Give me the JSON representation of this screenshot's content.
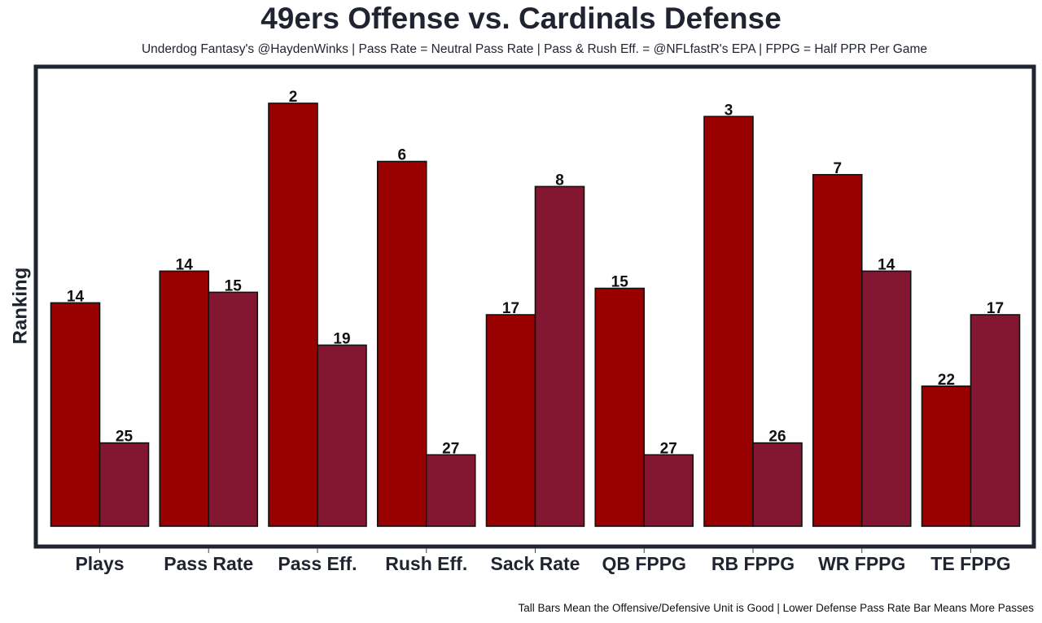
{
  "chart_data": {
    "type": "bar",
    "title": "49ers Offense vs. Cardinals Defense",
    "subtitle": "Underdog Fantasy's @HaydenWinks | Pass Rate = Neutral Pass Rate | Pass & Rush Eff. = @NFLfastR's EPA | FPPG = Half PPR Per Game",
    "caption": "Tall Bars Mean the Offensive/Defensive Unit is Good | Lower Defense Pass Rate Bar Means More Passes",
    "xlabel": "",
    "ylabel": "Ranking",
    "ylim": [
      0,
      32
    ],
    "grid": false,
    "legend": "none",
    "categories": [
      "Plays",
      "Pass Rate",
      "Pass Eff.",
      "Rush Eff.",
      "Sack Rate",
      "QB FPPG",
      "RB FPPG",
      "WR FPPG",
      "TE FPPG"
    ],
    "series": [
      {
        "name": "49ers Offense",
        "color": "#990000",
        "ranks": [
          14,
          14,
          2,
          6,
          17,
          15,
          3,
          7,
          22
        ],
        "values": [
          16.9,
          19.3,
          32.0,
          27.6,
          16.0,
          18.0,
          31.0,
          26.6,
          10.6
        ]
      },
      {
        "name": "Cardinals Defense",
        "color": "#831731",
        "ranks": [
          25,
          15,
          19,
          27,
          8,
          27,
          26,
          14,
          17
        ],
        "values": [
          6.3,
          17.7,
          13.7,
          5.4,
          25.7,
          5.4,
          6.3,
          19.3,
          16.0
        ]
      }
    ]
  }
}
